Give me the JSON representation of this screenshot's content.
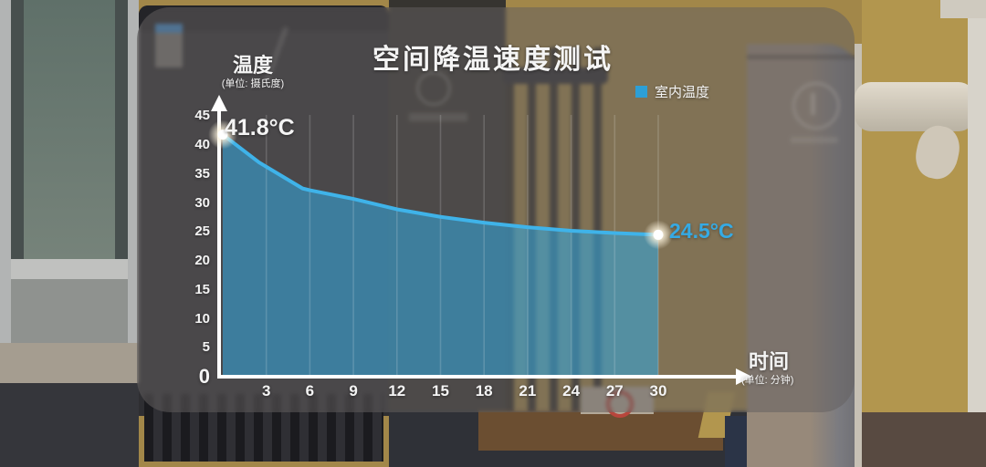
{
  "title": "空间降温速度测试",
  "legend": {
    "label": "室内温度",
    "swatch_color": "#2D9FD6"
  },
  "y_axis": {
    "label": "温度",
    "unit_note": "(单位: 摄氏度)",
    "ticks": [
      0,
      5,
      10,
      15,
      20,
      25,
      30,
      35,
      40,
      45
    ]
  },
  "x_axis": {
    "label": "时间",
    "unit_note": "(单位: 分钟)",
    "ticks": [
      3,
      6,
      9,
      12,
      15,
      18,
      21,
      24,
      27,
      30
    ]
  },
  "annotations": {
    "start_label": "41.8°C",
    "end_label": "24.5°C"
  },
  "chart_data": {
    "type": "area",
    "title": "空间降温速度测试",
    "xlabel": "时间 (单位: 分钟)",
    "ylabel": "温度 (单位: 摄氏度)",
    "series": [
      {
        "name": "室内温度",
        "x": [
          0,
          2.5,
          5.5,
          6,
          9,
          12,
          15,
          18,
          21,
          24,
          27,
          30
        ],
        "values": [
          41.8,
          37.0,
          32.5,
          32.2,
          30.7,
          28.9,
          27.6,
          26.6,
          25.8,
          25.2,
          24.8,
          24.5
        ]
      }
    ],
    "x_ticks": [
      3,
      6,
      9,
      12,
      15,
      18,
      21,
      24,
      27,
      30
    ],
    "y_ticks": [
      0,
      5,
      10,
      15,
      20,
      25,
      30,
      35,
      40,
      45
    ],
    "xlim": [
      0,
      30
    ],
    "ylim": [
      0,
      45
    ],
    "grid": "vertical",
    "line_color": "#3FB3E9",
    "fill_color": "rgba(51,163,217,0.58)",
    "marker_color": "#FFFFFF",
    "axis_color": "#FFFFFF",
    "point_labels": {
      "first": "41.8°C",
      "last": "24.5°C"
    },
    "legend_position": "top-right"
  }
}
